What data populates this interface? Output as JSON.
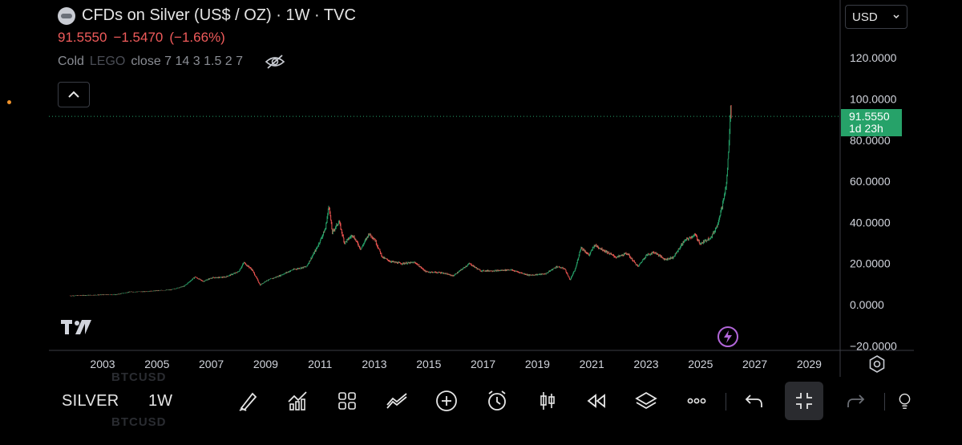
{
  "header": {
    "title": "CFDs on Silver (US$ / OZ) · 1W · TVC",
    "price": "91.5550",
    "change": "−1.5470",
    "change_pct": "(−1.66%)",
    "indicator_name": "Cold",
    "indicator_obscured": "LEGO",
    "indicator_params": "close 7 14 3 1.5 2 7"
  },
  "currency": {
    "selected": "USD"
  },
  "price_tag": {
    "value": "91.5550",
    "countdown": "1d 23h",
    "color": "#26a269"
  },
  "toolbar": {
    "symbol": "SILVER",
    "timeframe": "1W",
    "ghost_symbol": "BTCUSD",
    "tools": [
      "brush-icon",
      "indicators-icon",
      "layout-icon",
      "compare-icon",
      "add-icon",
      "alert-icon",
      "candle-type-icon",
      "replay-icon",
      "layers-icon",
      "more-icon",
      "undo-icon",
      "fullscreen-exit-icon",
      "redo-icon",
      "lightbulb-icon"
    ]
  },
  "chart_data": {
    "type": "line",
    "title": "",
    "xlabel": "",
    "ylabel": "",
    "x_ticks": [
      "2003",
      "2005",
      "2007",
      "2009",
      "2011",
      "2013",
      "2015",
      "2017",
      "2019",
      "2021",
      "2023",
      "2025",
      "2027",
      "2029"
    ],
    "y_ticks": [
      "120.0000",
      "100.0000",
      "80.0000",
      "60.0000",
      "40.0000",
      "20.0000",
      "0.0000",
      "−20.0000"
    ],
    "ylim": [
      -20,
      120
    ],
    "xlim": [
      2001.8,
      2030.0
    ],
    "last_price": 91.555,
    "up_color": "#26a269",
    "down_color": "#ef5350",
    "series": [
      {
        "values": [
          [
            2001.8,
            4.3
          ],
          [
            2002.5,
            4.6
          ],
          [
            2003.0,
            4.8
          ],
          [
            2003.5,
            4.9
          ],
          [
            2004.0,
            6.2
          ],
          [
            2004.5,
            6.3
          ],
          [
            2005.0,
            6.8
          ],
          [
            2005.5,
            7.2
          ],
          [
            2006.0,
            9.0
          ],
          [
            2006.4,
            13.5
          ],
          [
            2006.7,
            11.3
          ],
          [
            2007.0,
            13.0
          ],
          [
            2007.5,
            13.4
          ],
          [
            2008.0,
            16.0
          ],
          [
            2008.2,
            20.5
          ],
          [
            2008.5,
            17.0
          ],
          [
            2008.8,
            9.5
          ],
          [
            2009.0,
            11.5
          ],
          [
            2009.5,
            14.0
          ],
          [
            2010.0,
            17.0
          ],
          [
            2010.5,
            18.5
          ],
          [
            2010.9,
            28.0
          ],
          [
            2011.2,
            37.0
          ],
          [
            2011.33,
            48.5
          ],
          [
            2011.45,
            35.0
          ],
          [
            2011.7,
            40.5
          ],
          [
            2011.9,
            30.0
          ],
          [
            2012.2,
            34.0
          ],
          [
            2012.5,
            27.0
          ],
          [
            2012.8,
            34.5
          ],
          [
            2013.0,
            32.0
          ],
          [
            2013.3,
            23.0
          ],
          [
            2013.6,
            21.0
          ],
          [
            2014.0,
            20.0
          ],
          [
            2014.5,
            20.5
          ],
          [
            2014.9,
            16.0
          ],
          [
            2015.5,
            15.5
          ],
          [
            2015.9,
            14.0
          ],
          [
            2016.5,
            20.0
          ],
          [
            2016.9,
            16.5
          ],
          [
            2017.5,
            16.5
          ],
          [
            2018.0,
            17.0
          ],
          [
            2018.7,
            14.3
          ],
          [
            2019.3,
            15.0
          ],
          [
            2019.7,
            18.5
          ],
          [
            2020.0,
            17.5
          ],
          [
            2020.2,
            12.0
          ],
          [
            2020.4,
            17.5
          ],
          [
            2020.6,
            28.0
          ],
          [
            2020.9,
            24.0
          ],
          [
            2021.1,
            29.0
          ],
          [
            2021.5,
            26.0
          ],
          [
            2021.9,
            23.0
          ],
          [
            2022.3,
            25.0
          ],
          [
            2022.7,
            18.5
          ],
          [
            2023.0,
            24.0
          ],
          [
            2023.3,
            25.5
          ],
          [
            2023.7,
            22.0
          ],
          [
            2024.0,
            23.0
          ],
          [
            2024.4,
            31.0
          ],
          [
            2024.8,
            34.0
          ],
          [
            2025.0,
            29.5
          ],
          [
            2025.4,
            33.0
          ],
          [
            2025.6,
            38.0
          ],
          [
            2025.8,
            48.0
          ],
          [
            2025.95,
            58.0
          ],
          [
            2026.05,
            78.0
          ],
          [
            2026.1,
            96.0
          ],
          [
            2026.13,
            91.555
          ]
        ]
      }
    ]
  }
}
